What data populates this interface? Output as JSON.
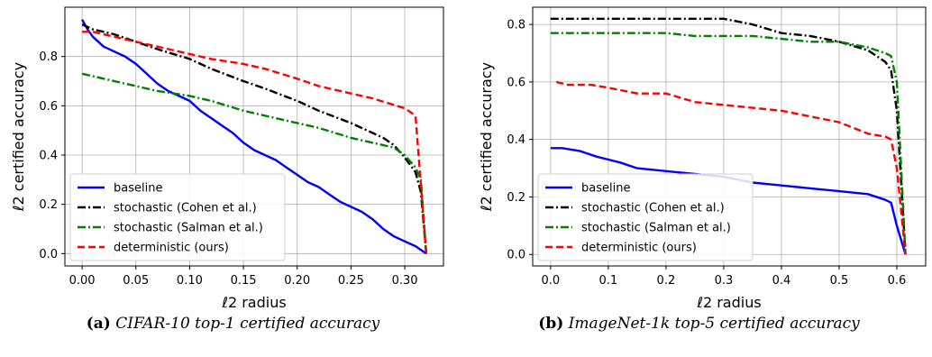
{
  "chart_data": [
    {
      "type": "line",
      "caption_label": "(a)",
      "caption_text": "CIFAR-10 top-1 certified accuracy",
      "xlabel": "ℓ2 radius",
      "ylabel": "ℓ2 certified accuracy",
      "xlim": [
        -0.016,
        0.336
      ],
      "ylim": [
        -0.05,
        1.0
      ],
      "xticks": [
        0.0,
        0.05,
        0.1,
        0.15,
        0.2,
        0.25,
        0.3
      ],
      "xtick_labels": [
        "0.00",
        "0.05",
        "0.10",
        "0.15",
        "0.20",
        "0.25",
        "0.30"
      ],
      "yticks": [
        0.0,
        0.2,
        0.4,
        0.6,
        0.8
      ],
      "ytick_labels": [
        "0.0",
        "0.2",
        "0.4",
        "0.6",
        "0.8"
      ],
      "grid": true,
      "legend_position": "lower-left",
      "series": [
        {
          "name": "baseline",
          "color": "#0000ff",
          "dash": "solid",
          "x": [
            0.0,
            0.005,
            0.01,
            0.02,
            0.03,
            0.04,
            0.05,
            0.06,
            0.07,
            0.08,
            0.09,
            0.1,
            0.11,
            0.12,
            0.13,
            0.14,
            0.15,
            0.16,
            0.17,
            0.18,
            0.19,
            0.2,
            0.21,
            0.22,
            0.23,
            0.24,
            0.25,
            0.26,
            0.27,
            0.28,
            0.29,
            0.3,
            0.31,
            0.32
          ],
          "y": [
            0.95,
            0.91,
            0.88,
            0.84,
            0.82,
            0.8,
            0.77,
            0.73,
            0.69,
            0.66,
            0.64,
            0.62,
            0.58,
            0.55,
            0.52,
            0.49,
            0.45,
            0.42,
            0.4,
            0.38,
            0.35,
            0.32,
            0.29,
            0.27,
            0.24,
            0.21,
            0.19,
            0.17,
            0.14,
            0.1,
            0.07,
            0.05,
            0.03,
            0.0
          ]
        },
        {
          "name": "stochastic (Cohen et al.)",
          "color": "#000000",
          "dash": "dashdot",
          "x": [
            0.0,
            0.01,
            0.02,
            0.03,
            0.05,
            0.07,
            0.1,
            0.12,
            0.15,
            0.17,
            0.2,
            0.22,
            0.25,
            0.27,
            0.28,
            0.29,
            0.3,
            0.31,
            0.315,
            0.32
          ],
          "y": [
            0.93,
            0.91,
            0.9,
            0.89,
            0.86,
            0.83,
            0.79,
            0.75,
            0.7,
            0.67,
            0.62,
            0.58,
            0.53,
            0.49,
            0.47,
            0.44,
            0.39,
            0.33,
            0.25,
            0.0
          ]
        },
        {
          "name": "stochastic (Salman et al.)",
          "color": "#008000",
          "dash": "dashdot",
          "x": [
            0.0,
            0.01,
            0.02,
            0.03,
            0.05,
            0.07,
            0.1,
            0.12,
            0.15,
            0.17,
            0.2,
            0.22,
            0.25,
            0.27,
            0.29,
            0.3,
            0.31,
            0.315,
            0.32
          ],
          "y": [
            0.73,
            0.72,
            0.71,
            0.7,
            0.68,
            0.66,
            0.64,
            0.62,
            0.58,
            0.56,
            0.53,
            0.51,
            0.47,
            0.45,
            0.43,
            0.4,
            0.35,
            0.3,
            0.0
          ]
        },
        {
          "name": "deterministic (ours)",
          "color": "#ff0000",
          "dash": "dashed",
          "x": [
            0.0,
            0.01,
            0.02,
            0.03,
            0.05,
            0.07,
            0.1,
            0.12,
            0.15,
            0.17,
            0.2,
            0.22,
            0.25,
            0.27,
            0.3,
            0.31,
            0.32
          ],
          "y": [
            0.9,
            0.9,
            0.89,
            0.88,
            0.86,
            0.84,
            0.81,
            0.79,
            0.77,
            0.75,
            0.71,
            0.68,
            0.65,
            0.63,
            0.59,
            0.56,
            0.0
          ]
        }
      ]
    },
    {
      "type": "line",
      "caption_label": "(b)",
      "caption_text": "ImageNet-1k top-5 certified accuracy",
      "xlabel": "ℓ2 radius",
      "ylabel": "ℓ2 certified accuracy",
      "xlim": [
        -0.031,
        0.65
      ],
      "ylim": [
        -0.04,
        0.86
      ],
      "xticks": [
        0.0,
        0.1,
        0.2,
        0.3,
        0.4,
        0.5,
        0.6
      ],
      "xtick_labels": [
        "0.0",
        "0.1",
        "0.2",
        "0.3",
        "0.4",
        "0.5",
        "0.6"
      ],
      "yticks": [
        0.0,
        0.2,
        0.4,
        0.6,
        0.8
      ],
      "ytick_labels": [
        "0.0",
        "0.2",
        "0.4",
        "0.6",
        "0.8"
      ],
      "grid": true,
      "legend_position": "lower-left",
      "series": [
        {
          "name": "baseline",
          "color": "#0000ff",
          "dash": "solid",
          "x": [
            0.0,
            0.02,
            0.05,
            0.08,
            0.1,
            0.12,
            0.15,
            0.2,
            0.25,
            0.3,
            0.35,
            0.4,
            0.45,
            0.5,
            0.55,
            0.58,
            0.59,
            0.6,
            0.615
          ],
          "y": [
            0.37,
            0.37,
            0.36,
            0.34,
            0.33,
            0.32,
            0.3,
            0.29,
            0.28,
            0.27,
            0.25,
            0.24,
            0.23,
            0.22,
            0.21,
            0.19,
            0.18,
            0.1,
            0.0
          ]
        },
        {
          "name": "stochastic (Cohen et al.)",
          "color": "#000000",
          "dash": "dashdot",
          "x": [
            0.0,
            0.05,
            0.1,
            0.15,
            0.2,
            0.25,
            0.3,
            0.35,
            0.4,
            0.45,
            0.5,
            0.55,
            0.58,
            0.59,
            0.6,
            0.615
          ],
          "y": [
            0.82,
            0.82,
            0.82,
            0.82,
            0.82,
            0.82,
            0.82,
            0.8,
            0.77,
            0.76,
            0.74,
            0.71,
            0.67,
            0.64,
            0.5,
            0.0
          ]
        },
        {
          "name": "stochastic (Salman et al.)",
          "color": "#008000",
          "dash": "dashdot",
          "x": [
            0.0,
            0.05,
            0.1,
            0.15,
            0.2,
            0.25,
            0.3,
            0.35,
            0.4,
            0.45,
            0.5,
            0.55,
            0.58,
            0.59,
            0.6,
            0.615
          ],
          "y": [
            0.77,
            0.77,
            0.77,
            0.77,
            0.77,
            0.76,
            0.76,
            0.76,
            0.75,
            0.74,
            0.74,
            0.72,
            0.7,
            0.69,
            0.6,
            0.0
          ]
        },
        {
          "name": "deterministic (ours)",
          "color": "#ff0000",
          "dash": "dashed",
          "x": [
            0.01,
            0.03,
            0.07,
            0.1,
            0.15,
            0.2,
            0.25,
            0.3,
            0.35,
            0.4,
            0.45,
            0.5,
            0.55,
            0.58,
            0.59,
            0.6,
            0.615
          ],
          "y": [
            0.6,
            0.59,
            0.59,
            0.58,
            0.56,
            0.56,
            0.53,
            0.52,
            0.51,
            0.5,
            0.48,
            0.46,
            0.42,
            0.41,
            0.4,
            0.3,
            0.0
          ]
        }
      ]
    }
  ]
}
